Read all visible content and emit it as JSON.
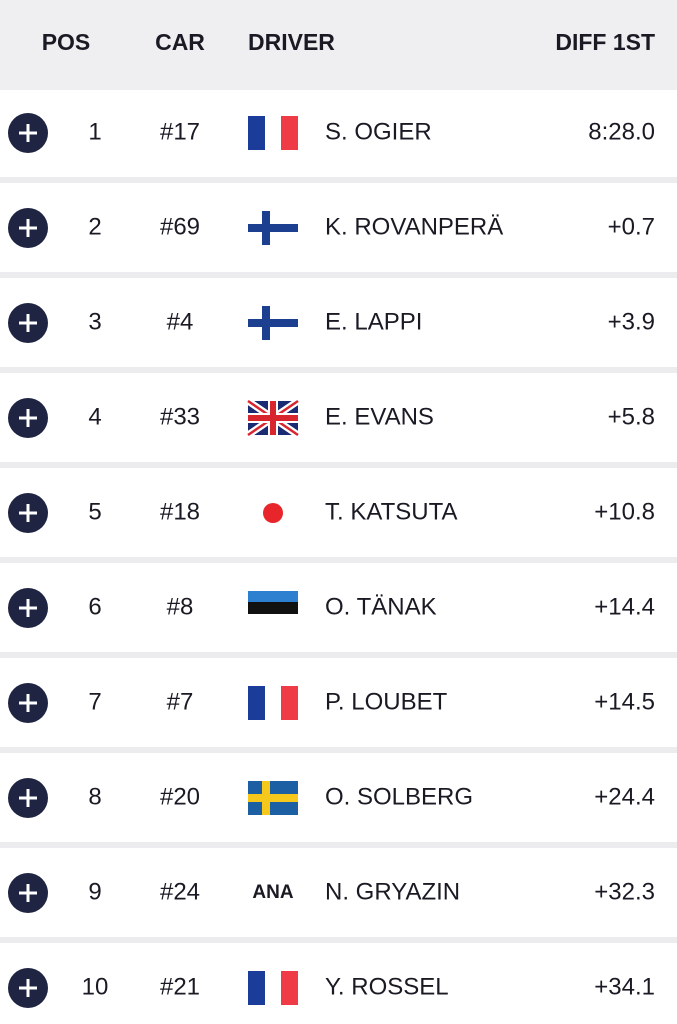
{
  "header": {
    "pos": "POS",
    "car": "CAR",
    "driver": "DRIVER",
    "diff": "DIFF 1ST"
  },
  "rows": [
    {
      "pos": "1",
      "car": "#17",
      "driver": "S. OGIER",
      "diff": "8:28.0"
    },
    {
      "pos": "2",
      "car": "#69",
      "driver": "K. ROVANPERÄ",
      "diff": "+0.7"
    },
    {
      "pos": "3",
      "car": "#4",
      "driver": "E. LAPPI",
      "diff": "+3.9"
    },
    {
      "pos": "4",
      "car": "#33",
      "driver": "E. EVANS",
      "diff": "+5.8"
    },
    {
      "pos": "5",
      "car": "#18",
      "driver": "T. KATSUTA",
      "diff": "+10.8"
    },
    {
      "pos": "6",
      "car": "#8",
      "driver": "O. TÄNAK",
      "diff": "+14.4"
    },
    {
      "pos": "7",
      "car": "#7",
      "driver": "P. LOUBET",
      "diff": "+14.5"
    },
    {
      "pos": "8",
      "car": "#20",
      "driver": "O. SOLBERG",
      "diff": "+24.4"
    },
    {
      "pos": "9",
      "car": "#24",
      "flag": "ANA",
      "driver": "N. GRYAZIN",
      "diff": "+32.3"
    },
    {
      "pos": "10",
      "car": "#21",
      "driver": "Y. ROSSEL",
      "diff": "+34.1"
    }
  ]
}
